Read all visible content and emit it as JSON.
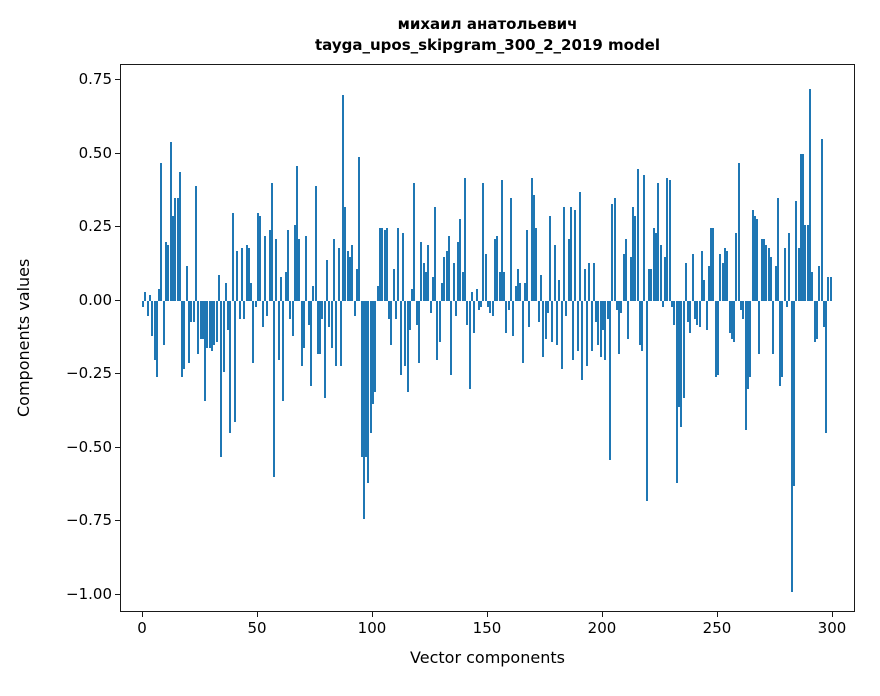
{
  "title": {
    "line1": "михаил анатольевич",
    "line2": "tayga_upos_skipgram_300_2_2019 model"
  },
  "chart_data": {
    "type": "bar",
    "title": "михаил анатольевич tayga_upos_skipgram_300_2_2019 model",
    "xlabel": "Vector components",
    "ylabel": "Components values",
    "bar_color": "#1f77b4",
    "grid": false,
    "legend": null,
    "x_range": [
      0,
      300
    ],
    "ylim": [
      -1.06,
      0.8
    ],
    "yticks": [
      {
        "value": 0.75,
        "label": "0.75"
      },
      {
        "value": 0.5,
        "label": "0.50"
      },
      {
        "value": 0.25,
        "label": "0.25"
      },
      {
        "value": 0.0,
        "label": "0.00"
      },
      {
        "value": -0.25,
        "label": "−0.25"
      },
      {
        "value": -0.5,
        "label": "−0.50"
      },
      {
        "value": -0.75,
        "label": "−0.75"
      },
      {
        "value": -1.0,
        "label": "−1.00"
      }
    ],
    "xticks": [
      {
        "value": 0,
        "label": "0"
      },
      {
        "value": 50,
        "label": "50"
      },
      {
        "value": 100,
        "label": "100"
      },
      {
        "value": 150,
        "label": "150"
      },
      {
        "value": 200,
        "label": "200"
      },
      {
        "value": 250,
        "label": "250"
      },
      {
        "value": 300,
        "label": "300"
      }
    ],
    "values": [
      -0.02,
      0.03,
      -0.05,
      0.02,
      -0.12,
      -0.2,
      -0.26,
      0.04,
      0.47,
      -0.15,
      0.2,
      0.19,
      0.54,
      0.29,
      0.35,
      0.35,
      0.44,
      -0.26,
      -0.23,
      0.12,
      -0.21,
      -0.07,
      -0.07,
      0.39,
      -0.18,
      -0.13,
      -0.13,
      -0.34,
      -0.16,
      -0.16,
      -0.17,
      -0.15,
      -0.14,
      0.09,
      -0.53,
      -0.24,
      0.06,
      -0.1,
      -0.45,
      0.3,
      -0.41,
      0.17,
      -0.06,
      0.18,
      -0.06,
      0.19,
      0.18,
      0.06,
      -0.21,
      -0.02,
      0.3,
      0.29,
      -0.09,
      0.22,
      -0.05,
      0.24,
      0.4,
      -0.6,
      0.21,
      -0.2,
      0.08,
      -0.34,
      0.1,
      0.24,
      -0.06,
      -0.12,
      0.26,
      0.46,
      0.21,
      -0.22,
      -0.16,
      0.22,
      -0.08,
      -0.29,
      0.05,
      0.39,
      -0.18,
      -0.18,
      -0.06,
      -0.33,
      0.14,
      -0.09,
      -0.16,
      0.21,
      -0.22,
      0.18,
      -0.22,
      0.7,
      0.32,
      0.17,
      0.15,
      0.19,
      -0.05,
      0.11,
      0.49,
      -0.53,
      -0.74,
      -0.53,
      -0.62,
      -0.45,
      -0.35,
      -0.31,
      0.05,
      0.25,
      0.25,
      0.24,
      0.25,
      -0.06,
      -0.15,
      0.11,
      -0.06,
      0.25,
      -0.25,
      0.23,
      -0.22,
      -0.31,
      -0.1,
      0.04,
      0.4,
      -0.08,
      -0.21,
      0.2,
      0.13,
      0.1,
      0.19,
      -0.04,
      0.08,
      0.32,
      -0.2,
      -0.14,
      0.06,
      0.15,
      0.17,
      0.22,
      -0.25,
      0.13,
      -0.05,
      0.2,
      0.28,
      0.1,
      0.42,
      -0.08,
      -0.3,
      0.03,
      -0.11,
      0.04,
      -0.03,
      -0.02,
      0.4,
      0.16,
      -0.02,
      -0.04,
      -0.05,
      0.21,
      0.22,
      0.1,
      0.41,
      0.1,
      -0.11,
      -0.03,
      0.35,
      -0.12,
      0.05,
      0.11,
      0.06,
      -0.21,
      0.06,
      0.24,
      -0.09,
      0.42,
      0.36,
      0.25,
      -0.07,
      0.09,
      -0.19,
      -0.13,
      -0.04,
      0.29,
      -0.14,
      0.19,
      -0.15,
      0.07,
      -0.23,
      0.32,
      -0.05,
      0.21,
      0.32,
      -0.2,
      0.31,
      -0.17,
      0.37,
      -0.27,
      0.11,
      -0.22,
      0.13,
      -0.17,
      0.13,
      -0.07,
      -0.15,
      -0.19,
      -0.1,
      -0.2,
      -0.06,
      -0.54,
      0.33,
      0.35,
      -0.03,
      -0.18,
      -0.04,
      0.16,
      0.21,
      -0.13,
      0.15,
      0.32,
      0.29,
      0.45,
      -0.15,
      -0.17,
      0.43,
      -0.68,
      0.11,
      0.11,
      0.25,
      0.23,
      0.4,
      0.19,
      -0.02,
      0.15,
      0.42,
      0.41,
      -0.02,
      -0.08,
      -0.62,
      -0.36,
      -0.43,
      -0.33,
      0.13,
      -0.07,
      -0.11,
      0.16,
      -0.06,
      -0.08,
      -0.09,
      0.17,
      0.07,
      -0.1,
      0.12,
      0.25,
      0.25,
      -0.26,
      -0.25,
      0.16,
      0.13,
      0.18,
      0.17,
      -0.11,
      -0.13,
      -0.14,
      0.23,
      0.47,
      -0.03,
      -0.06,
      -0.44,
      -0.3,
      -0.26,
      0.31,
      0.29,
      0.28,
      -0.18,
      0.21,
      0.21,
      0.19,
      0.18,
      0.15,
      -0.18,
      0.12,
      0.35,
      -0.29,
      -0.26,
      0.18,
      -0.02,
      0.23,
      -0.99,
      -0.63,
      0.34,
      0.18,
      0.5,
      0.5,
      0.26,
      0.26,
      0.72,
      0.1,
      -0.14,
      -0.13,
      0.12,
      0.55,
      -0.09,
      -0.45,
      0.08,
      0.08
    ]
  }
}
